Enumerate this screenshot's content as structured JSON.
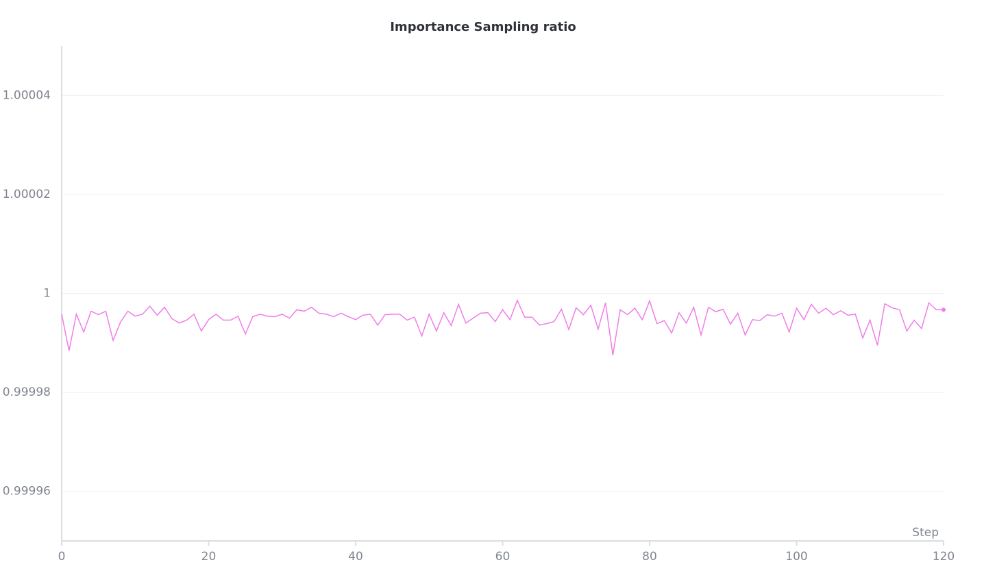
{
  "chart_data": {
    "type": "line",
    "title": "Importance Sampling ratio",
    "x_label": "Step",
    "x": [
      0,
      1,
      2,
      3,
      4,
      5,
      6,
      7,
      8,
      9,
      10,
      11,
      12,
      13,
      14,
      15,
      16,
      17,
      18,
      19,
      20,
      21,
      22,
      23,
      24,
      25,
      26,
      27,
      28,
      29,
      30,
      31,
      32,
      33,
      34,
      35,
      36,
      37,
      38,
      39,
      40,
      41,
      42,
      43,
      44,
      45,
      46,
      47,
      48,
      49,
      50,
      51,
      52,
      53,
      54,
      55,
      56,
      57,
      58,
      59,
      60,
      61,
      62,
      63,
      64,
      65,
      66,
      67,
      68,
      69,
      70,
      71,
      72,
      73,
      74,
      75,
      76,
      77,
      78,
      79,
      80,
      81,
      82,
      83,
      84,
      85,
      86,
      87,
      88,
      89,
      90,
      91,
      92,
      93,
      94,
      95,
      96,
      97,
      98,
      99,
      100,
      101,
      102,
      103,
      104,
      105,
      106,
      107,
      108,
      109,
      110,
      111,
      112,
      113,
      114,
      115,
      116,
      117,
      118,
      119,
      120
    ],
    "values": [
      0.9999958,
      0.9999884,
      0.9999958,
      0.9999922,
      0.9999964,
      0.9999957,
      0.9999964,
      0.9999905,
      0.9999942,
      0.9999964,
      0.9999954,
      0.9999958,
      0.9999974,
      0.9999956,
      0.9999972,
      0.9999949,
      0.999994,
      0.9999946,
      0.9999958,
      0.9999924,
      0.9999947,
      0.9999958,
      0.9999946,
      0.9999946,
      0.9999954,
      0.9999918,
      0.9999953,
      0.9999958,
      0.9999954,
      0.9999953,
      0.9999958,
      0.999995,
      0.9999967,
      0.9999964,
      0.9999972,
      0.999996,
      0.9999958,
      0.9999953,
      0.999996,
      0.9999953,
      0.9999947,
      0.9999956,
      0.9999958,
      0.9999936,
      0.9999957,
      0.9999958,
      0.9999958,
      0.9999946,
      0.9999952,
      0.9999914,
      0.9999958,
      0.9999924,
      0.9999961,
      0.9999935,
      0.9999978,
      0.999994,
      0.999995,
      0.999996,
      0.9999961,
      0.9999943,
      0.9999967,
      0.9999947,
      0.9999986,
      0.9999952,
      0.9999952,
      0.9999936,
      0.9999939,
      0.9999943,
      0.9999968,
      0.9999927,
      0.9999971,
      0.9999957,
      0.9999976,
      0.9999928,
      0.9999981,
      0.9999875,
      0.9999967,
      0.9999957,
      0.999997,
      0.9999947,
      0.9999985,
      0.9999939,
      0.9999945,
      0.999992,
      0.9999961,
      0.999994,
      0.9999972,
      0.9999916,
      0.9999972,
      0.9999963,
      0.9999968,
      0.9999938,
      0.999996,
      0.9999916,
      0.9999947,
      0.9999945,
      0.9999957,
      0.9999954,
      0.999996,
      0.9999922,
      0.999997,
      0.9999947,
      0.9999978,
      0.999996,
      0.999997,
      0.9999957,
      0.9999965,
      0.9999956,
      0.9999958,
      0.999991,
      0.9999946,
      0.9999895,
      0.9999979,
      0.9999971,
      0.9999967,
      0.9999924,
      0.9999946,
      0.9999929,
      0.9999981,
      0.9999967,
      0.9999967
    ],
    "color": "#f07de8",
    "xlim": [
      0,
      120
    ],
    "xticks": [
      0,
      20,
      40,
      60,
      80,
      100,
      120
    ],
    "ylim": [
      0.99995,
      1.00005
    ],
    "yticks": [
      1.00004,
      1.00002,
      1,
      0.99998,
      0.99996
    ],
    "grid": true
  }
}
